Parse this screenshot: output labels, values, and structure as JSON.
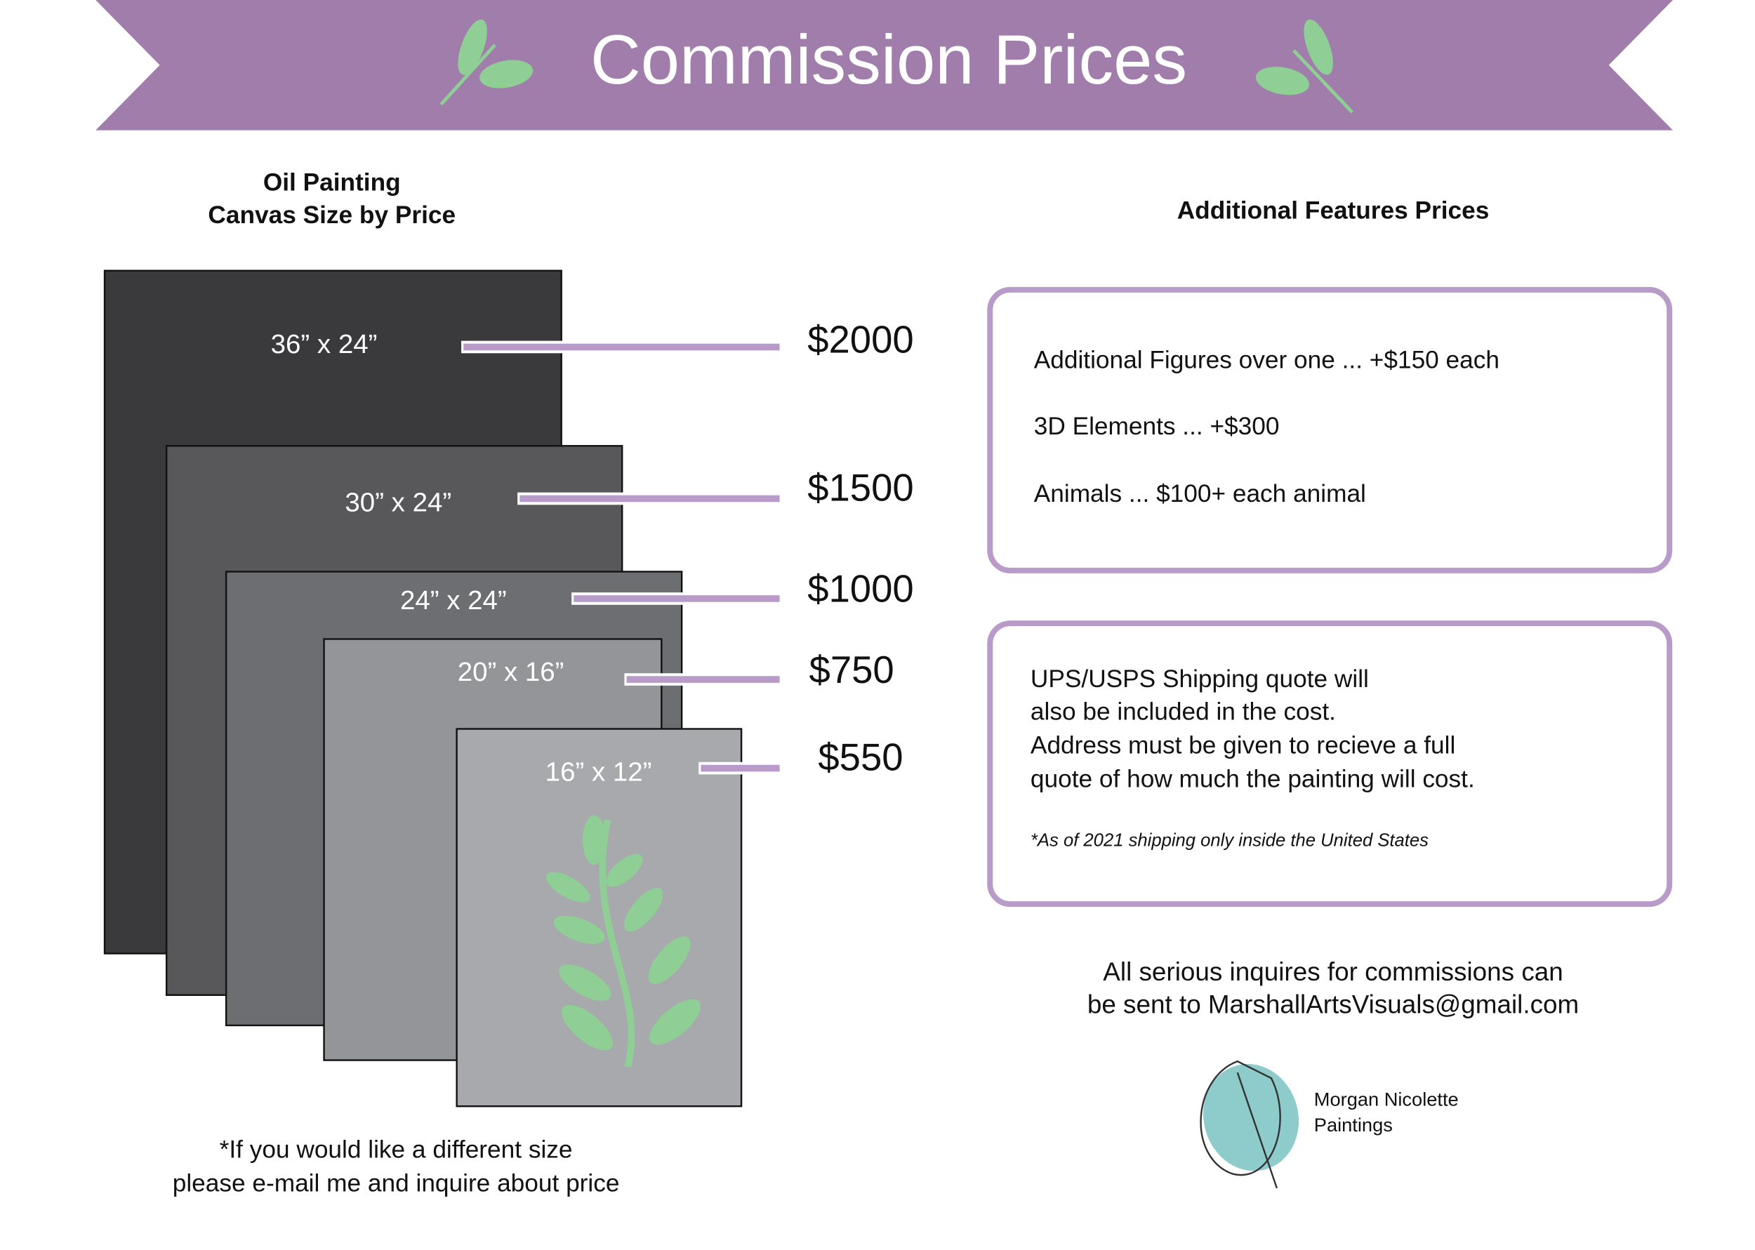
{
  "header": {
    "title": "Commission Prices"
  },
  "canvas_sizes": {
    "title_lines": [
      "Oil Painting",
      "Canvas Size by Price"
    ],
    "items": [
      {
        "size": "36” x 24”",
        "price": "$2000"
      },
      {
        "size": "30” x 24”",
        "price": "$1500"
      },
      {
        "size": "24” x 24”",
        "price": "$1000"
      },
      {
        "size": "20” x 16”",
        "price": "$750"
      },
      {
        "size": "16” x 12”",
        "price": "$550"
      }
    ],
    "note_lines": [
      "*If you would like a different size",
      "please e-mail me and inquire about price"
    ]
  },
  "features": {
    "title": "Additional Features Prices",
    "items": [
      "Additional Figures over one ... +$150 each",
      "3D Elements ... +$300",
      "Animals ... $100+ each animal"
    ]
  },
  "shipping": {
    "lines": [
      "UPS/USPS Shipping quote will",
      "also be included in the cost.",
      "Address must be given to recieve a full",
      "quote of how much the painting will cost."
    ],
    "footnote": "*As of 2021 shipping only inside the United States"
  },
  "contact": {
    "lines": [
      "All serious inquires for commissions can",
      "be sent to MarshallArtsVisuals@gmail.com"
    ]
  },
  "brand": {
    "lines": [
      "Morgan Nicolette",
      "Paintings"
    ]
  }
}
